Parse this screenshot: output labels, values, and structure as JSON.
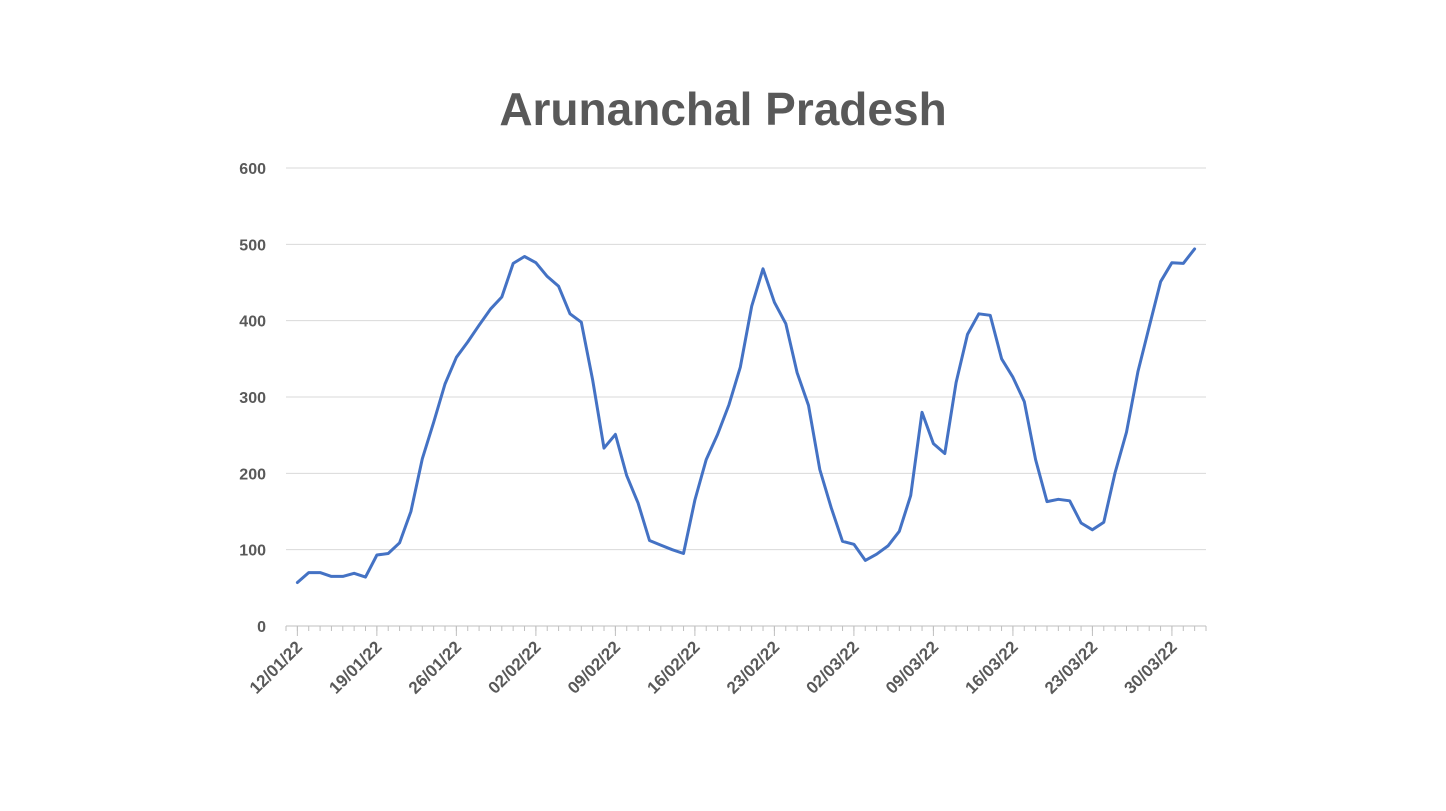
{
  "chart_data": {
    "type": "line",
    "title": "Arunanchal Pradesh",
    "xlabel": "",
    "ylabel": "",
    "ylim": [
      0,
      600
    ],
    "yticks": [
      0,
      100,
      200,
      300,
      400,
      500,
      600
    ],
    "xlim": [
      "11/01/22",
      "02/04/22"
    ],
    "xticks": [
      "12/01/22",
      "19/01/22",
      "26/01/22",
      "02/02/22",
      "09/02/22",
      "16/02/22",
      "23/02/22",
      "02/03/22",
      "09/03/22",
      "16/03/22",
      "23/03/22",
      "30/03/22"
    ],
    "grid": true,
    "line_color": "#4472C4",
    "start_date": "12/01/22",
    "series": [
      {
        "values": [
          57,
          70,
          70,
          65,
          65,
          69,
          64,
          93,
          95,
          109,
          150,
          219,
          267,
          317,
          352,
          372,
          394,
          415,
          431,
          475,
          484,
          476,
          458,
          445,
          409,
          398,
          322,
          233,
          251,
          197,
          161,
          112,
          106,
          100,
          95,
          165,
          218,
          251,
          290,
          339,
          419,
          468,
          424,
          396,
          332,
          289,
          205,
          155,
          111,
          107,
          86,
          94,
          105,
          124,
          171,
          280,
          239,
          226,
          319,
          382,
          409,
          407,
          350,
          326,
          294,
          218,
          163,
          166,
          164,
          135,
          126,
          136,
          201,
          254,
          333,
          392,
          451,
          476,
          475,
          494
        ]
      }
    ]
  }
}
